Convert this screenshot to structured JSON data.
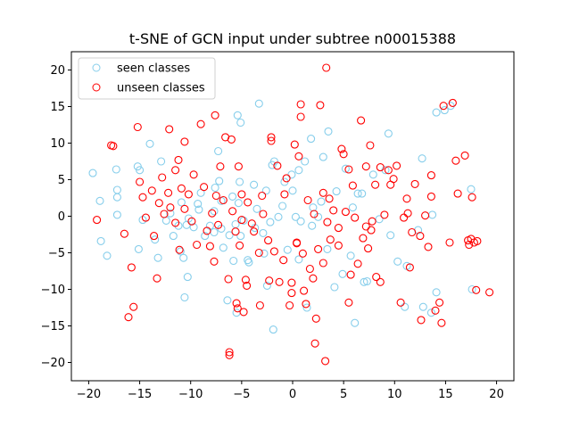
{
  "chart_data": {
    "type": "scatter",
    "title": "t-SNE of GCN input under subtree n00015388",
    "xlabel": "",
    "ylabel": "",
    "xlim": [
      -21.7,
      21.7
    ],
    "ylim": [
      -22.5,
      22.5
    ],
    "xticks": [
      -20,
      -15,
      -10,
      -5,
      0,
      5,
      10,
      15,
      20
    ],
    "yticks": [
      -20,
      -15,
      -10,
      -5,
      0,
      5,
      10,
      15,
      20
    ],
    "grid": false,
    "legend_position": "top-left",
    "marker": "hollow-circle",
    "series": [
      {
        "name": "seen classes",
        "color": "#87ceeb",
        "points": [
          [
            -19.6,
            5.9
          ],
          [
            -18.9,
            2.1
          ],
          [
            -18.8,
            -3.4
          ],
          [
            -18.2,
            -5.4
          ],
          [
            -17.2,
            2.6
          ],
          [
            -17.2,
            3.6
          ],
          [
            -17.3,
            6.4
          ],
          [
            -17.2,
            0.2
          ],
          [
            -15.1,
            -4.5
          ],
          [
            -15.2,
            6.8
          ],
          [
            -15.0,
            6.3
          ],
          [
            -14.7,
            -0.5
          ],
          [
            -14.0,
            9.9
          ],
          [
            -13.5,
            -3.2
          ],
          [
            -13.2,
            -5.7
          ],
          [
            -12.9,
            7.5
          ],
          [
            -12.4,
            -0.6
          ],
          [
            -12.0,
            0.4
          ],
          [
            -11.7,
            -2.7
          ],
          [
            -11.2,
            -1.3
          ],
          [
            -10.9,
            1.9
          ],
          [
            -11.0,
            -4.8
          ],
          [
            -10.7,
            -5.7
          ],
          [
            -10.4,
            -1.2
          ],
          [
            -10.2,
            -0.3
          ],
          [
            -10.6,
            -11.1
          ],
          [
            -10.3,
            -8.3
          ],
          [
            -9.7,
            -1.5
          ],
          [
            -9.3,
            1.7
          ],
          [
            -9.2,
            0.9
          ],
          [
            -9.0,
            3.2
          ],
          [
            -8.6,
            -2.7
          ],
          [
            -8.1,
            -1.3
          ],
          [
            -7.7,
            0.7
          ],
          [
            -7.7,
            -2.2
          ],
          [
            -7.6,
            3.9
          ],
          [
            -7.2,
            4.8
          ],
          [
            -7.0,
            2.1
          ],
          [
            -7.3,
            8.9
          ],
          [
            -7.0,
            -1.7
          ],
          [
            -6.8,
            -4.3
          ],
          [
            -6.4,
            -11.5
          ],
          [
            -6.2,
            -2.6
          ],
          [
            -5.8,
            -6.1
          ],
          [
            -5.9,
            2.7
          ],
          [
            -5.3,
            1.8
          ],
          [
            -5.6,
            -1.1
          ],
          [
            -5.5,
            -13.2
          ],
          [
            -5.4,
            13.8
          ],
          [
            -5.1,
            12.8
          ],
          [
            -5.2,
            4.7
          ],
          [
            -4.8,
            -0.6
          ],
          [
            -5.1,
            -2.7
          ],
          [
            -4.4,
            -6.0
          ],
          [
            -4.3,
            -6.3
          ],
          [
            -3.8,
            4.3
          ],
          [
            -3.7,
            -1.6
          ],
          [
            -3.5,
            1.0
          ],
          [
            -3.3,
            15.4
          ],
          [
            -2.9,
            -2.3
          ],
          [
            -2.8,
            -5.1
          ],
          [
            -2.6,
            3.5
          ],
          [
            -2.5,
            -9.5
          ],
          [
            -2.2,
            -0.8
          ],
          [
            -2.0,
            7.0
          ],
          [
            -1.9,
            -15.5
          ],
          [
            -1.8,
            7.5
          ],
          [
            -1.4,
            -0.1
          ],
          [
            -1.0,
            1.4
          ],
          [
            -0.8,
            4.7
          ],
          [
            -0.5,
            -4.6
          ],
          [
            -0.1,
            5.7
          ],
          [
            0.0,
            3.5
          ],
          [
            0.3,
            -0.1
          ],
          [
            0.6,
            6.3
          ],
          [
            0.6,
            -5.9
          ],
          [
            0.8,
            -0.7
          ],
          [
            1.2,
            7.5
          ],
          [
            1.4,
            -12.5
          ],
          [
            1.8,
            10.6
          ],
          [
            1.9,
            -1.3
          ],
          [
            2.0,
            1.2
          ],
          [
            2.5,
            -0.1
          ],
          [
            2.8,
            2.0
          ],
          [
            3.0,
            8.1
          ],
          [
            3.4,
            -4.5
          ],
          [
            3.5,
            11.6
          ],
          [
            4.1,
            -9.7
          ],
          [
            4.3,
            3.4
          ],
          [
            4.9,
            -7.9
          ],
          [
            5.2,
            6.5
          ],
          [
            5.7,
            -5.4
          ],
          [
            5.9,
            1.2
          ],
          [
            6.1,
            -14.6
          ],
          [
            6.4,
            3.1
          ],
          [
            6.8,
            3.1
          ],
          [
            7.0,
            -9.0
          ],
          [
            7.3,
            -8.9
          ],
          [
            7.9,
            5.7
          ],
          [
            8.5,
            -0.4
          ],
          [
            9.1,
            6.3
          ],
          [
            9.6,
            -2.6
          ],
          [
            9.4,
            11.3
          ],
          [
            10.3,
            -6.2
          ],
          [
            11.0,
            -12.4
          ],
          [
            11.2,
            -6.8
          ],
          [
            12.3,
            -1.9
          ],
          [
            12.8,
            -12.4
          ],
          [
            12.7,
            7.9
          ],
          [
            13.6,
            -13.2
          ],
          [
            13.7,
            0.2
          ],
          [
            14.1,
            -10.4
          ],
          [
            14.1,
            14.2
          ],
          [
            14.9,
            14.5
          ],
          [
            15.5,
            15.1
          ],
          [
            17.5,
            3.7
          ],
          [
            17.6,
            -10.0
          ]
        ]
      },
      {
        "name": "unseen classes",
        "color": "#ff0000",
        "points": [
          [
            -19.2,
            -0.5
          ],
          [
            -17.8,
            9.7
          ],
          [
            -17.6,
            9.6
          ],
          [
            -16.5,
            -2.4
          ],
          [
            -16.1,
            -13.8
          ],
          [
            -15.8,
            -7.0
          ],
          [
            -15.6,
            -12.4
          ],
          [
            -15.2,
            12.2
          ],
          [
            -15.0,
            4.7
          ],
          [
            -14.7,
            2.6
          ],
          [
            -14.4,
            -0.2
          ],
          [
            -13.8,
            3.5
          ],
          [
            -13.6,
            -2.7
          ],
          [
            -13.3,
            -8.5
          ],
          [
            -13.1,
            1.8
          ],
          [
            -12.8,
            5.3
          ],
          [
            -12.6,
            0.3
          ],
          [
            -12.2,
            3.2
          ],
          [
            -12.0,
            1.2
          ],
          [
            -12.1,
            11.9
          ],
          [
            -11.5,
            -0.9
          ],
          [
            -11.5,
            6.3
          ],
          [
            -11.2,
            7.7
          ],
          [
            -11.1,
            -4.6
          ],
          [
            -10.9,
            3.8
          ],
          [
            -10.6,
            10.2
          ],
          [
            -10.6,
            1.0
          ],
          [
            -10.2,
            3.0
          ],
          [
            -9.9,
            -0.7
          ],
          [
            -9.7,
            5.7
          ],
          [
            -9.4,
            -3.9
          ],
          [
            -9.0,
            12.6
          ],
          [
            -8.7,
            4.0
          ],
          [
            -8.4,
            -2.0
          ],
          [
            -8.1,
            -4.1
          ],
          [
            -7.9,
            0.4
          ],
          [
            -7.7,
            -6.2
          ],
          [
            -7.5,
            2.8
          ],
          [
            -7.6,
            13.8
          ],
          [
            -7.3,
            -1.2
          ],
          [
            -7.1,
            6.8
          ],
          [
            -6.8,
            2.2
          ],
          [
            -6.6,
            10.8
          ],
          [
            -6.3,
            -8.6
          ],
          [
            -6.2,
            -19.0
          ],
          [
            -6.2,
            -18.6
          ],
          [
            -6.0,
            10.5
          ],
          [
            -5.9,
            0.7
          ],
          [
            -5.6,
            -2.1
          ],
          [
            -5.5,
            -11.9
          ],
          [
            -5.4,
            -12.6
          ],
          [
            -5.3,
            6.8
          ],
          [
            -5.2,
            -4.0
          ],
          [
            -5.0,
            -0.5
          ],
          [
            -5.0,
            3.0
          ],
          [
            -4.8,
            -13.1
          ],
          [
            -4.6,
            -8.7
          ],
          [
            -4.5,
            -9.5
          ],
          [
            -4.4,
            1.9
          ],
          [
            -4.0,
            -1.0
          ],
          [
            -3.8,
            -2.1
          ],
          [
            -3.3,
            -5.0
          ],
          [
            -3.2,
            -12.2
          ],
          [
            -3.0,
            2.8
          ],
          [
            -2.9,
            0.3
          ],
          [
            -2.4,
            -3.3
          ],
          [
            -2.3,
            -8.8
          ],
          [
            -2.1,
            10.3
          ],
          [
            -2.1,
            10.8
          ],
          [
            -1.8,
            -4.8
          ],
          [
            -1.5,
            6.9
          ],
          [
            -1.3,
            -9.0
          ],
          [
            -0.9,
            -6.0
          ],
          [
            -0.8,
            3.0
          ],
          [
            -0.6,
            5.2
          ],
          [
            -0.3,
            -12.2
          ],
          [
            -0.1,
            -9.1
          ],
          [
            -0.1,
            -10.5
          ],
          [
            0.2,
            9.8
          ],
          [
            0.4,
            -3.6
          ],
          [
            0.4,
            -3.7
          ],
          [
            0.6,
            8.2
          ],
          [
            0.8,
            15.3
          ],
          [
            0.8,
            13.6
          ],
          [
            1.0,
            -5.1
          ],
          [
            1.1,
            -10.2
          ],
          [
            1.3,
            -12.0
          ],
          [
            1.5,
            2.2
          ],
          [
            1.7,
            -7.2
          ],
          [
            2.0,
            -8.5
          ],
          [
            2.1,
            0.3
          ],
          [
            2.3,
            -14.0
          ],
          [
            2.2,
            -17.4
          ],
          [
            2.5,
            -4.5
          ],
          [
            2.7,
            15.2
          ],
          [
            3.0,
            -6.4
          ],
          [
            3.0,
            3.2
          ],
          [
            3.2,
            -19.8
          ],
          [
            3.3,
            20.3
          ],
          [
            3.4,
            -0.8
          ],
          [
            3.7,
            -3.2
          ],
          [
            3.6,
            2.4
          ],
          [
            4.0,
            0.8
          ],
          [
            4.5,
            -4.0
          ],
          [
            4.5,
            -1.6
          ],
          [
            4.8,
            9.2
          ],
          [
            5.0,
            8.5
          ],
          [
            5.2,
            0.6
          ],
          [
            5.5,
            6.4
          ],
          [
            5.5,
            -11.8
          ],
          [
            5.7,
            -8.0
          ],
          [
            5.9,
            4.2
          ],
          [
            6.1,
            -0.2
          ],
          [
            6.4,
            -6.5
          ],
          [
            6.7,
            13.1
          ],
          [
            6.9,
            -3.0
          ],
          [
            7.2,
            6.8
          ],
          [
            7.2,
            -1.4
          ],
          [
            7.4,
            -4.4
          ],
          [
            7.6,
            9.7
          ],
          [
            7.7,
            -1.9
          ],
          [
            7.8,
            -0.7
          ],
          [
            8.1,
            4.3
          ],
          [
            8.2,
            -8.3
          ],
          [
            8.6,
            -9.0
          ],
          [
            8.6,
            6.7
          ],
          [
            9.0,
            0.2
          ],
          [
            9.4,
            6.3
          ],
          [
            9.6,
            4.3
          ],
          [
            9.9,
            5.1
          ],
          [
            10.2,
            6.9
          ],
          [
            10.6,
            -11.8
          ],
          [
            10.9,
            -0.2
          ],
          [
            11.2,
            2.4
          ],
          [
            11.3,
            0.4
          ],
          [
            11.5,
            -7.0
          ],
          [
            11.7,
            -2.2
          ],
          [
            12.0,
            4.4
          ],
          [
            12.5,
            -2.7
          ],
          [
            12.6,
            -14.2
          ],
          [
            13.0,
            0.1
          ],
          [
            13.3,
            -4.2
          ],
          [
            13.6,
            5.6
          ],
          [
            13.6,
            2.7
          ],
          [
            14.0,
            -12.9
          ],
          [
            14.4,
            -11.8
          ],
          [
            14.6,
            -14.6
          ],
          [
            14.8,
            15.1
          ],
          [
            15.4,
            -3.6
          ],
          [
            15.7,
            15.5
          ],
          [
            16.0,
            7.6
          ],
          [
            16.2,
            3.1
          ],
          [
            16.9,
            8.3
          ],
          [
            17.2,
            -3.3
          ],
          [
            17.3,
            -3.9
          ],
          [
            17.5,
            -3.1
          ],
          [
            17.6,
            2.6
          ],
          [
            17.8,
            -3.6
          ],
          [
            18.0,
            -10.1
          ],
          [
            18.1,
            -3.4
          ],
          [
            19.3,
            -10.4
          ]
        ]
      }
    ]
  }
}
